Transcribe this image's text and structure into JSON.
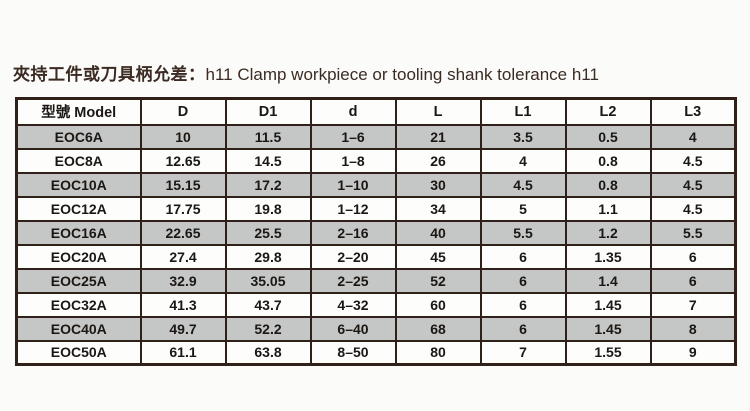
{
  "caption": {
    "title_zh": "夾持工件或刀具柄允差：",
    "title_en": "h11 Clamp workpiece or tooling shank tolerance h11"
  },
  "colors": {
    "page_background": "#fbfbf9",
    "border": "#30201a",
    "row_shaded": "#c5c7c6",
    "row_plain": "#fdfdfc",
    "cell_text": "#1b1713",
    "title_text": "#3b2b22"
  },
  "table": {
    "headers": [
      "型號 Model",
      "D",
      "D1",
      "d",
      "L",
      "L1",
      "L2",
      "L3"
    ],
    "rows": [
      [
        "EOC6A",
        "10",
        "11.5",
        "1–6",
        "21",
        "3.5",
        "0.5",
        "4"
      ],
      [
        "EOC8A",
        "12.65",
        "14.5",
        "1–8",
        "26",
        "4",
        "0.8",
        "4.5"
      ],
      [
        "EOC10A",
        "15.15",
        "17.2",
        "1–10",
        "30",
        "4.5",
        "0.8",
        "4.5"
      ],
      [
        "EOC12A",
        "17.75",
        "19.8",
        "1–12",
        "34",
        "5",
        "1.1",
        "4.5"
      ],
      [
        "EOC16A",
        "22.65",
        "25.5",
        "2–16",
        "40",
        "5.5",
        "1.2",
        "5.5"
      ],
      [
        "EOC20A",
        "27.4",
        "29.8",
        "2–20",
        "45",
        "6",
        "1.35",
        "6"
      ],
      [
        "EOC25A",
        "32.9",
        "35.05",
        "2–25",
        "52",
        "6",
        "1.4",
        "6"
      ],
      [
        "EOC32A",
        "41.3",
        "43.7",
        "4–32",
        "60",
        "6",
        "1.45",
        "7"
      ],
      [
        "EOC40A",
        "49.7",
        "52.2",
        "6–40",
        "68",
        "6",
        "1.45",
        "8"
      ],
      [
        "EOC50A",
        "61.1",
        "63.8",
        "8–50",
        "80",
        "7",
        "1.55",
        "9"
      ]
    ]
  }
}
